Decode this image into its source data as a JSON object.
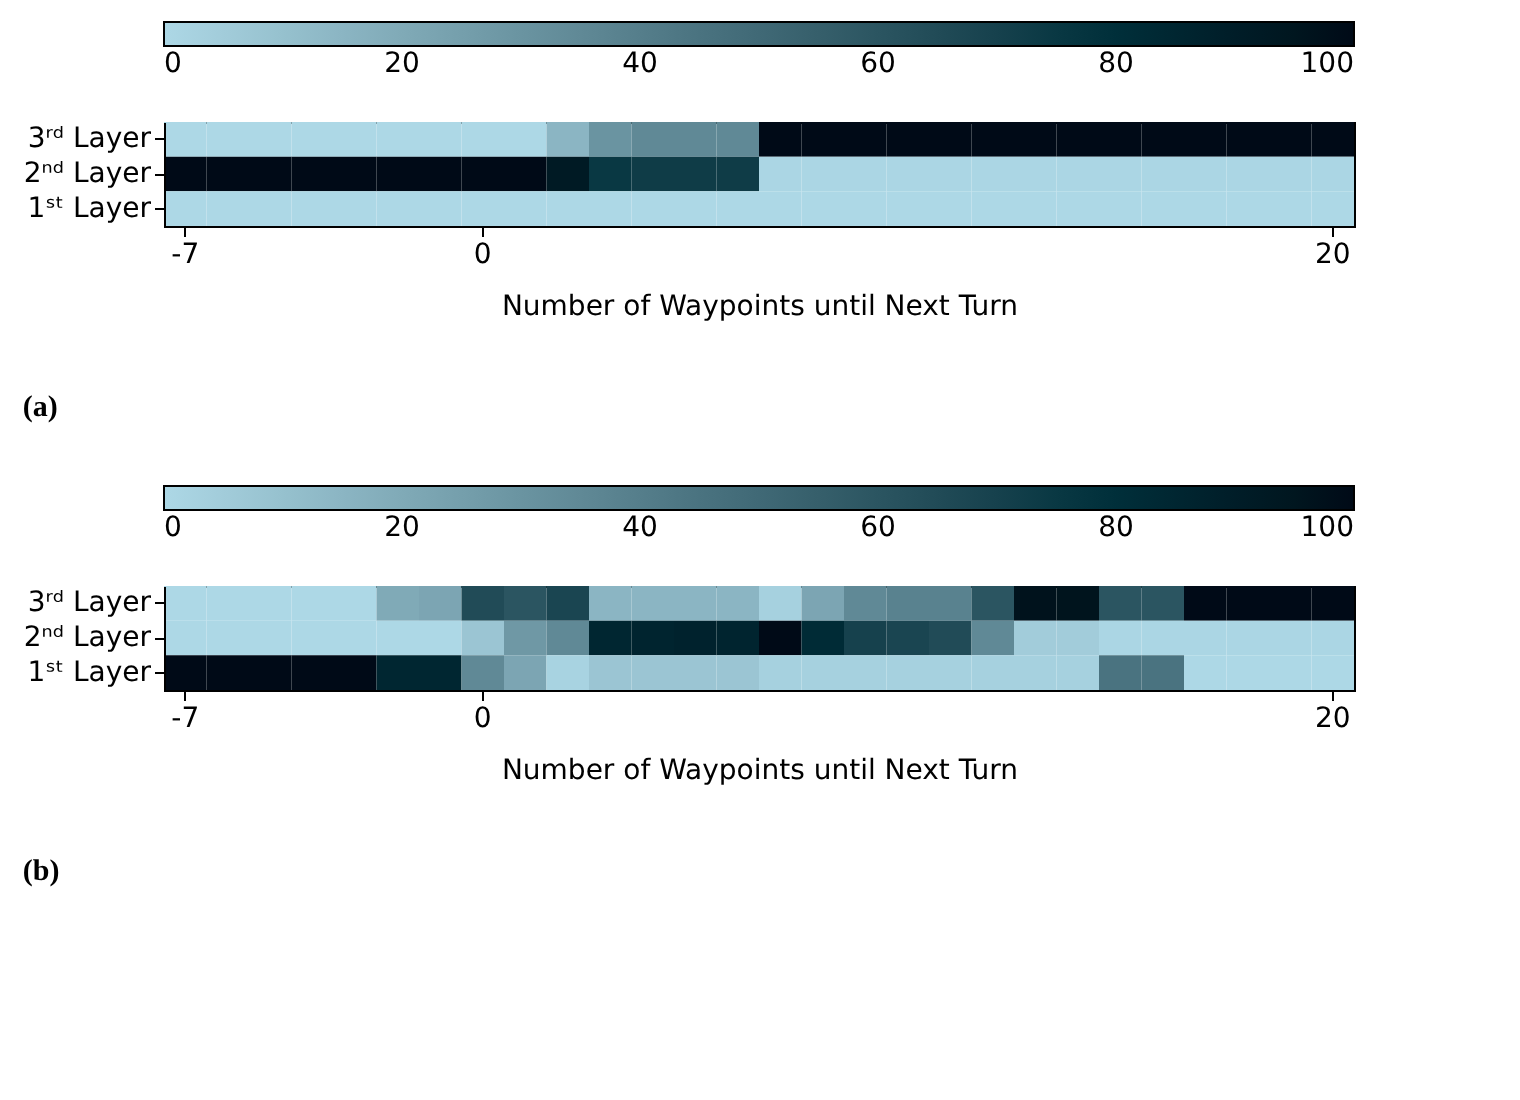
{
  "chart_data": [
    {
      "type": "heatmap",
      "xlabel": "Number of  Waypoints until Next Turn",
      "annotations": [
        "(a)"
      ],
      "categories": [
        "-7",
        null,
        null,
        null,
        null,
        null,
        null,
        "0",
        null,
        null,
        null,
        null,
        null,
        null,
        null,
        null,
        null,
        null,
        null,
        null,
        null,
        null,
        null,
        null,
        null,
        null,
        null,
        "20"
      ],
      "y_categories": [
        "3ʳᵈ Layer",
        "2ⁿᵈ Layer",
        "1ˢᵗ Layer"
      ],
      "cells": [
        [
          0,
          0,
          0,
          0,
          0,
          0,
          0,
          0,
          0,
          15,
          30,
          35,
          35,
          35,
          100,
          100,
          100,
          100,
          100,
          100,
          100,
          100,
          100,
          100,
          100,
          100,
          100,
          100
        ],
        [
          100,
          100,
          100,
          100,
          100,
          100,
          100,
          100,
          100,
          92,
          75,
          73,
          73,
          73,
          1,
          1,
          1,
          1,
          1,
          1,
          1,
          1,
          1,
          1,
          1,
          1,
          1,
          1
        ],
        [
          0,
          0,
          0,
          0,
          0,
          0,
          0,
          0,
          0,
          0,
          0,
          0,
          0,
          0,
          0,
          0,
          0,
          0,
          0,
          0,
          0,
          0,
          0,
          0,
          0,
          0,
          0,
          0
        ]
      ],
      "clim": [
        0,
        100
      ],
      "cticks": [
        0,
        20,
        40,
        60,
        80,
        100
      ]
    },
    {
      "type": "heatmap",
      "xlabel": "Number of  Waypoints until Next Turn",
      "annotations": [
        "(b)"
      ],
      "categories": [
        "-7",
        null,
        null,
        null,
        null,
        null,
        null,
        "0",
        null,
        null,
        null,
        null,
        null,
        null,
        null,
        null,
        null,
        null,
        null,
        null,
        null,
        null,
        null,
        null,
        null,
        null,
        null,
        "20"
      ],
      "y_categories": [
        "3ʳᵈ Layer",
        "2ⁿᵈ Layer",
        "1ˢᵗ Layer"
      ],
      "cells": [
        [
          0,
          0,
          0,
          0,
          0,
          20,
          22,
          65,
          60,
          68,
          15,
          15,
          15,
          15,
          3,
          22,
          35,
          38,
          38,
          60,
          97,
          96,
          60,
          60,
          100,
          100,
          100,
          100
        ],
        [
          0,
          0,
          0,
          0,
          0,
          0,
          0,
          8,
          28,
          35,
          85,
          86,
          87,
          86,
          100,
          82,
          70,
          68,
          65,
          35,
          5,
          5,
          1,
          1,
          1,
          1,
          1,
          1
        ],
        [
          100,
          100,
          100,
          100,
          100,
          85,
          85,
          35,
          22,
          2,
          8,
          8,
          8,
          8,
          3,
          3,
          3,
          3,
          3,
          3,
          3,
          3,
          45,
          45,
          0,
          0,
          0,
          0
        ]
      ],
      "clim": [
        0,
        100
      ],
      "cticks": [
        0,
        20,
        40,
        60,
        80,
        100
      ]
    }
  ]
}
